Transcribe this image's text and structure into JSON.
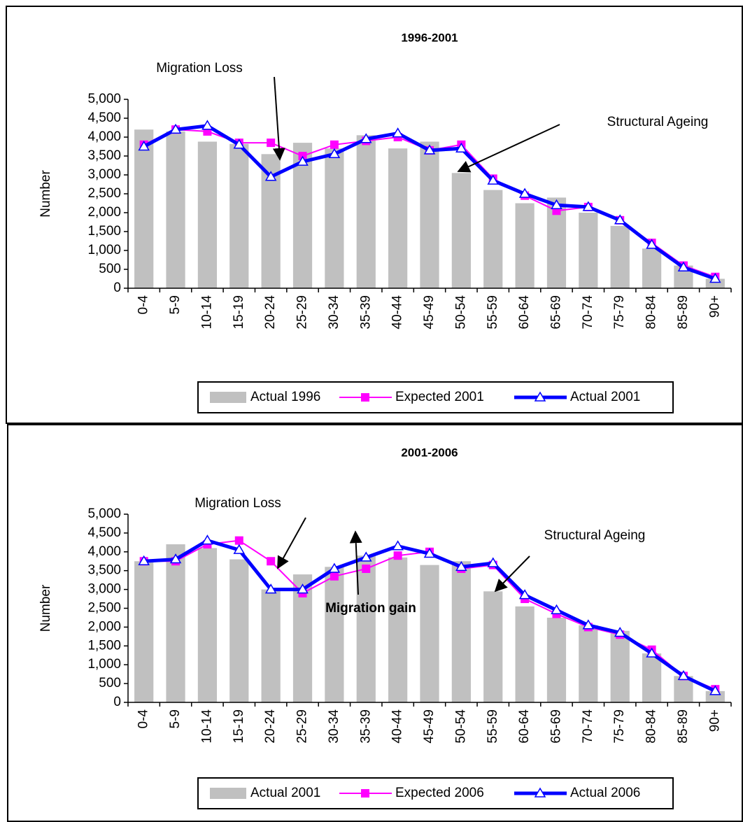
{
  "chart_data": [
    {
      "type": "bar",
      "title": "1996-2001",
      "y_label": "Number",
      "categories": [
        "0-4",
        "5-9",
        "10-14",
        "15-19",
        "20-24",
        "25-29",
        "30-34",
        "35-39",
        "40-44",
        "45-49",
        "50-54",
        "55-59",
        "60-64",
        "65-69",
        "70-74",
        "75-79",
        "80-84",
        "85-89",
        "90+"
      ],
      "series": [
        {
          "name": "Actual 1996",
          "type": "bar",
          "color": "#c0c0c0",
          "values": [
            4200,
            4150,
            3880,
            3820,
            3550,
            3850,
            3700,
            4050,
            3700,
            3880,
            3050,
            2600,
            2250,
            2400,
            2000,
            1650,
            1050,
            600,
            250
          ]
        },
        {
          "name": "Expected 2001",
          "type": "line",
          "color": "#ff00ff",
          "values": [
            3800,
            4200,
            4150,
            3850,
            3850,
            3500,
            3800,
            3900,
            4000,
            3650,
            3800,
            2900,
            2450,
            2050,
            2150,
            1800,
            1200,
            600,
            300
          ]
        },
        {
          "name": "Actual 2001",
          "type": "line",
          "color": "#0000ff",
          "values": [
            3750,
            4200,
            4300,
            3800,
            2950,
            3350,
            3550,
            3950,
            4100,
            3650,
            3700,
            2850,
            2500,
            2200,
            2150,
            1800,
            1150,
            550,
            250
          ]
        }
      ],
      "ylim": [
        0,
        5000
      ],
      "yticks": [
        0,
        500,
        {
          "value": 1000,
          "label": "1,000"
        },
        {
          "value": 1500,
          "label": "1,500"
        },
        {
          "value": 2000,
          "label": "2,000"
        },
        {
          "value": 2500,
          "label": "2,500"
        },
        {
          "value": 3000,
          "label": "3,000"
        },
        {
          "value": 3500,
          "label": "3,500"
        },
        {
          "value": 4000,
          "label": "4,000"
        },
        {
          "value": 4500,
          "label": "4,500"
        },
        {
          "value": 5000,
          "label": "5,000"
        }
      ],
      "annotations": [
        "Migration Loss",
        "Structural Ageing"
      ]
    },
    {
      "type": "bar",
      "title": "2001-2006",
      "y_label": "Number",
      "categories": [
        "0-4",
        "5-9",
        "10-14",
        "15-19",
        "20-24",
        "25-29",
        "30-34",
        "35-39",
        "40-44",
        "45-49",
        "50-54",
        "55-59",
        "60-64",
        "65-69",
        "70-74",
        "75-79",
        "80-84",
        "85-89",
        "90+"
      ],
      "series": [
        {
          "name": "Actual 2001",
          "type": "bar",
          "color": "#c0c0c0",
          "values": [
            3750,
            4200,
            4100,
            3800,
            3000,
            3400,
            3600,
            3900,
            3850,
            3650,
            3750,
            2950,
            2550,
            2250,
            2050,
            1900,
            1300,
            700,
            300
          ]
        },
        {
          "name": "Expected 2006",
          "type": "line",
          "color": "#ff00ff",
          "values": [
            3750,
            3750,
            4200,
            4300,
            3750,
            2900,
            3350,
            3550,
            3900,
            4000,
            3550,
            3650,
            2750,
            2350,
            2000,
            1800,
            1400,
            700,
            350
          ]
        },
        {
          "name": "Actual 2006",
          "type": "line",
          "color": "#0000ff",
          "values": [
            3750,
            3800,
            4300,
            4050,
            3000,
            3000,
            3550,
            3850,
            4150,
            3950,
            3600,
            3700,
            2850,
            2450,
            2050,
            1850,
            1300,
            700,
            300
          ]
        }
      ],
      "ylim": [
        0,
        5000
      ],
      "yticks": [
        0,
        500,
        {
          "value": 1000,
          "label": "1,000"
        },
        {
          "value": 1500,
          "label": "1,500"
        },
        {
          "value": 2000,
          "label": "2,000"
        },
        {
          "value": 2500,
          "label": "2,500"
        },
        {
          "value": 3000,
          "label": "3,000"
        },
        {
          "value": 3500,
          "label": "3,500"
        },
        {
          "value": 4000,
          "label": "4,000"
        },
        {
          "value": 4500,
          "label": "4,500"
        },
        {
          "value": 5000,
          "label": "5,000"
        }
      ],
      "annotations": [
        "Migration Loss",
        "Structural Ageing",
        "Migration gain"
      ]
    }
  ]
}
